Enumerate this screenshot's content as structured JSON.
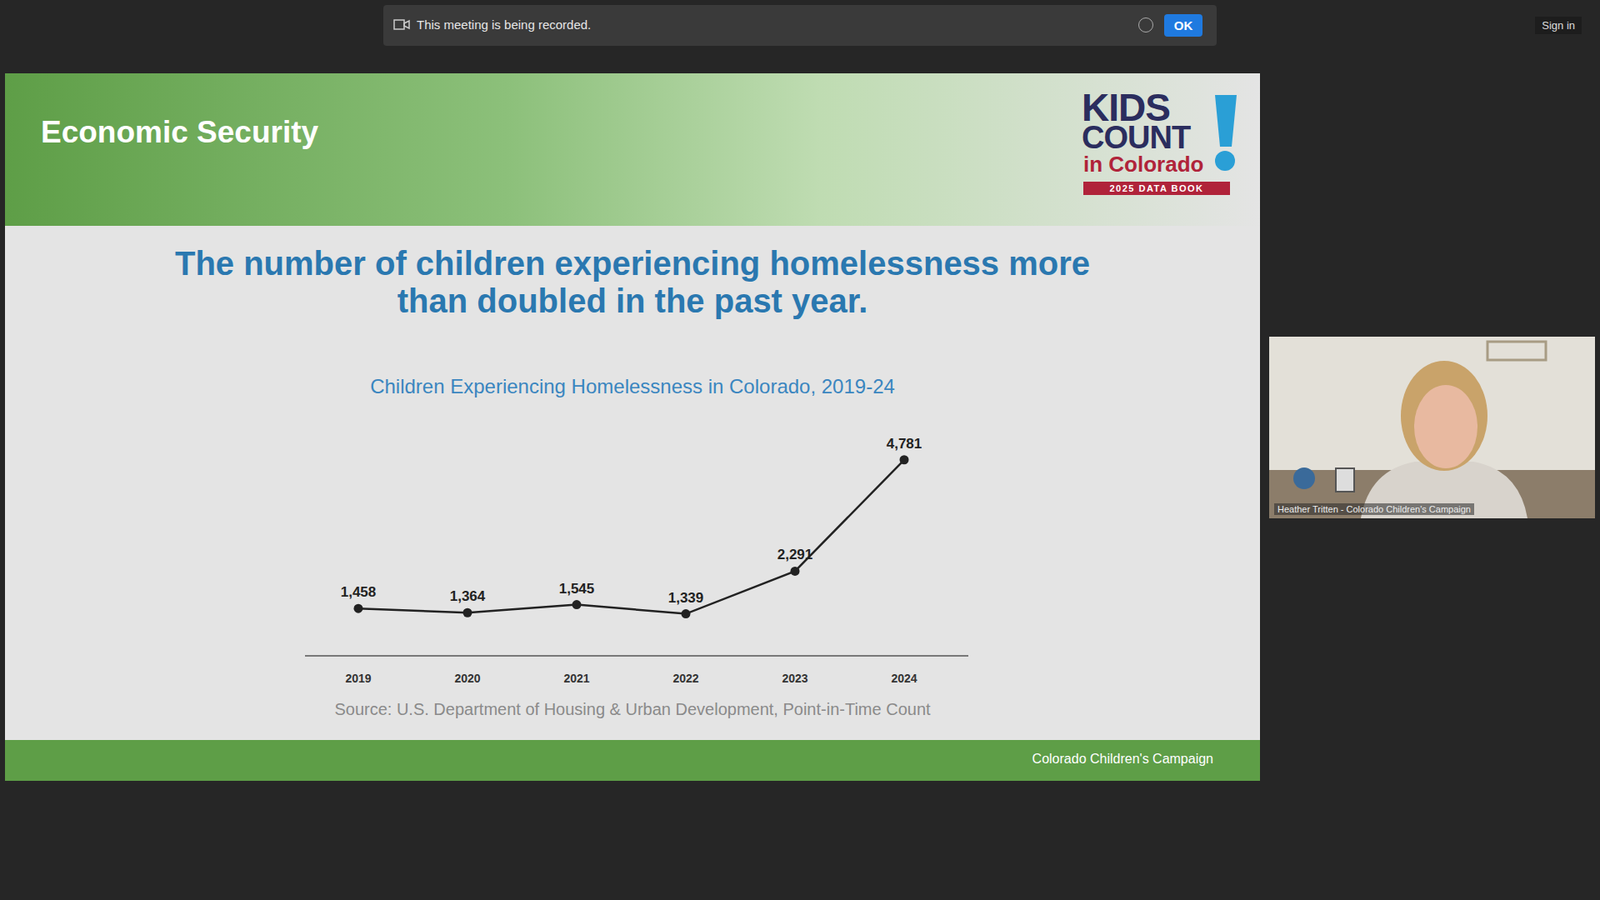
{
  "meeting": {
    "recording_banner": "This meeting is being recorded.",
    "ok_button": "OK",
    "sign_in": "Sign in",
    "participant_name": "Heather Tritten - Colorado Children's Campaign"
  },
  "slide": {
    "section": "Economic Security",
    "logo": {
      "line1": "KIDS",
      "line2": "COUNT",
      "line3": "in Colorado",
      "badge": "2025 DATA BOOK"
    },
    "footer": "Colorado Children's Campaign"
  },
  "chart_data": {
    "type": "line",
    "title": "The number of children experiencing homelessness more than doubled in the past year.",
    "subtitle": "Children Experiencing Homelessness in Colorado, 2019-24",
    "source": "Source: U.S. Department of Housing & Urban Development, Point-in-Time Count",
    "categories": [
      "2019",
      "2020",
      "2021",
      "2022",
      "2023",
      "2024"
    ],
    "values": [
      1458,
      1364,
      1545,
      1339,
      2291,
      4781
    ],
    "value_labels": [
      "1,458",
      "1,364",
      "1,545",
      "1,339",
      "2,291",
      "4,781"
    ],
    "color": "#222222",
    "marker": "circle",
    "data_labels": true,
    "tick_labels": "x",
    "grid": false,
    "ylim": [
      400,
      5000
    ]
  }
}
